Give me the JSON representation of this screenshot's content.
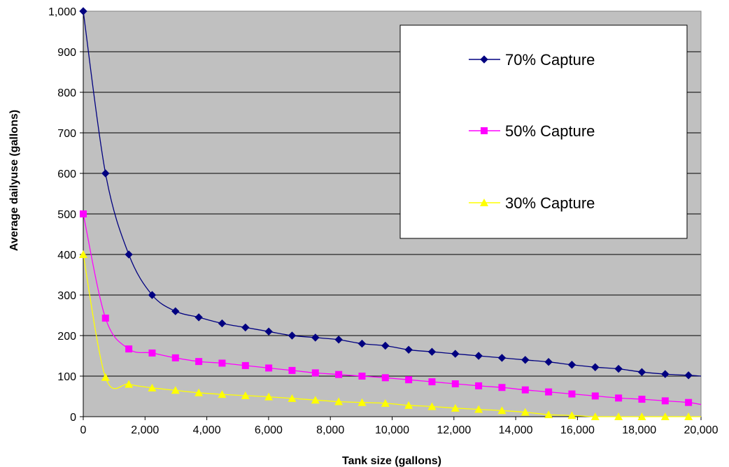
{
  "chart_data": {
    "type": "line",
    "xlabel": "Tank size (gallons)",
    "ylabel": "Average dailyuse (gallons)",
    "xlim": [
      0,
      20000
    ],
    "ylim": [
      0,
      1000
    ],
    "x_ticks": [
      0,
      2000,
      4000,
      6000,
      8000,
      10000,
      12000,
      14000,
      16000,
      18000,
      20000
    ],
    "x_tick_labels": [
      "0",
      "2,000",
      "4,000",
      "6,000",
      "8,000",
      "10,000",
      "12,000",
      "14,000",
      "16,000",
      "18,000",
      "20,000"
    ],
    "y_ticks": [
      0,
      100,
      200,
      300,
      400,
      500,
      600,
      700,
      800,
      900,
      1000
    ],
    "y_tick_labels": [
      "0",
      "100",
      "200",
      "300",
      "400",
      "500",
      "600",
      "700",
      "800",
      "900",
      "1,000"
    ],
    "grid": "horizontal",
    "legend_position": "top-right",
    "plot_background": "#c0c0c0",
    "x": [
      0,
      720,
      1475,
      2230,
      2985,
      3740,
      4495,
      5250,
      6005,
      6760,
      7515,
      8270,
      9025,
      9780,
      10535,
      11290,
      12045,
      12800,
      13555,
      14310,
      15065,
      15820,
      16575,
      17330,
      18085,
      18840,
      19595,
      20000
    ],
    "series": [
      {
        "name": "70% Capture",
        "color": "#000080",
        "marker": "diamond",
        "values": [
          1000,
          600,
          400,
          300,
          260,
          245,
          230,
          220,
          210,
          200,
          195,
          190,
          180,
          175,
          165,
          160,
          155,
          150,
          145,
          140,
          135,
          128,
          122,
          118,
          110,
          105,
          102,
          100
        ]
      },
      {
        "name": "50% Capture",
        "color": "#ff00ff",
        "marker": "square",
        "values": [
          500,
          243,
          167,
          157,
          145,
          136,
          132,
          126,
          120,
          114,
          108,
          104,
          100,
          96,
          91,
          86,
          81,
          76,
          72,
          66,
          61,
          56,
          51,
          46,
          43,
          39,
          35,
          30
        ]
      },
      {
        "name": "30% Capture",
        "color": "#ffff00",
        "marker": "triangle",
        "values": [
          400,
          97,
          80,
          71,
          65,
          59,
          55,
          52,
          49,
          45,
          41,
          37,
          35,
          33,
          28,
          25,
          21,
          18,
          15,
          11,
          5,
          3,
          0,
          0,
          0,
          0,
          0,
          0
        ]
      }
    ]
  }
}
